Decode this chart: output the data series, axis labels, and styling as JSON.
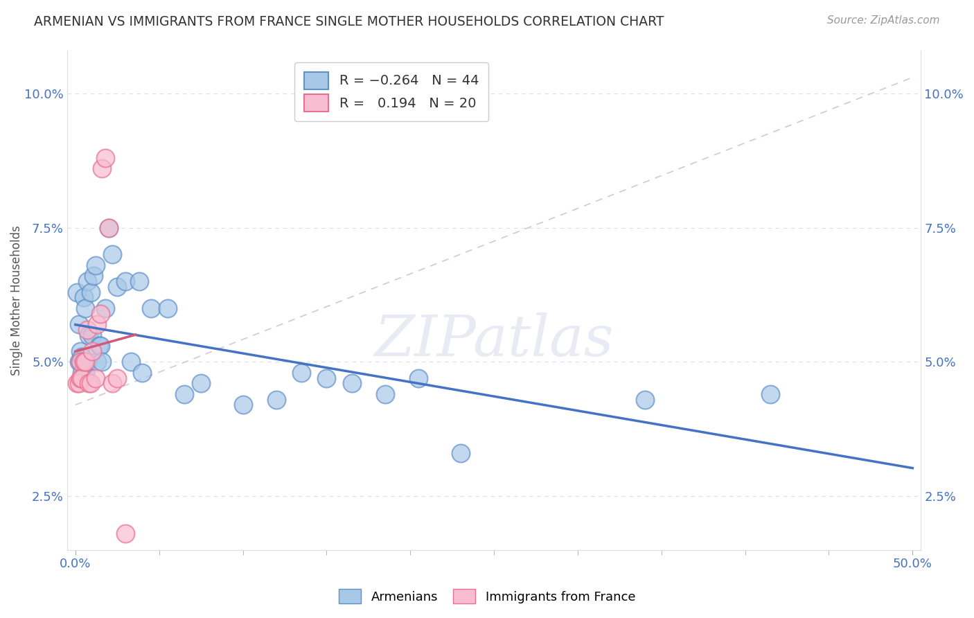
{
  "title": "ARMENIAN VS IMMIGRANTS FROM FRANCE SINGLE MOTHER HOUSEHOLDS CORRELATION CHART",
  "source": "Source: ZipAtlas.com",
  "ylabel": "Single Mother Households",
  "xlim": [
    -0.005,
    0.505
  ],
  "ylim": [
    0.015,
    0.108
  ],
  "xticks": [
    0.0,
    0.5
  ],
  "xticklabels": [
    "0.0%",
    "50.0%"
  ],
  "yticks": [
    0.025,
    0.05,
    0.075,
    0.1
  ],
  "yticklabels": [
    "2.5%",
    "5.0%",
    "7.5%",
    "10.0%"
  ],
  "blue_color": "#a8c8e8",
  "pink_color": "#f8bdd0",
  "blue_edge_color": "#6090c8",
  "pink_edge_color": "#e87090",
  "blue_line_color": "#4472c4",
  "pink_line_color": "#d45878",
  "diag_color": "#d8bcd8",
  "watermark": "ZIPatlas",
  "armenians_x": [
    0.001,
    0.002,
    0.002,
    0.003,
    0.003,
    0.004,
    0.004,
    0.005,
    0.005,
    0.006,
    0.006,
    0.007,
    0.007,
    0.008,
    0.009,
    0.01,
    0.011,
    0.012,
    0.013,
    0.014,
    0.015,
    0.016,
    0.018,
    0.02,
    0.022,
    0.025,
    0.03,
    0.033,
    0.038,
    0.04,
    0.045,
    0.055,
    0.065,
    0.075,
    0.1,
    0.12,
    0.135,
    0.15,
    0.165,
    0.185,
    0.205,
    0.23,
    0.34,
    0.415
  ],
  "armenians_y": [
    0.063,
    0.057,
    0.05,
    0.052,
    0.05,
    0.048,
    0.051,
    0.05,
    0.062,
    0.048,
    0.06,
    0.05,
    0.065,
    0.055,
    0.063,
    0.055,
    0.066,
    0.068,
    0.05,
    0.053,
    0.053,
    0.05,
    0.06,
    0.075,
    0.07,
    0.064,
    0.065,
    0.05,
    0.065,
    0.048,
    0.06,
    0.06,
    0.044,
    0.046,
    0.042,
    0.043,
    0.048,
    0.047,
    0.046,
    0.044,
    0.047,
    0.033,
    0.043,
    0.044
  ],
  "france_x": [
    0.001,
    0.002,
    0.003,
    0.003,
    0.004,
    0.005,
    0.006,
    0.007,
    0.008,
    0.009,
    0.01,
    0.012,
    0.013,
    0.015,
    0.016,
    0.018,
    0.02,
    0.022,
    0.025,
    0.03
  ],
  "france_y": [
    0.046,
    0.046,
    0.047,
    0.05,
    0.047,
    0.05,
    0.05,
    0.056,
    0.046,
    0.046,
    0.052,
    0.047,
    0.057,
    0.059,
    0.086,
    0.088,
    0.075,
    0.046,
    0.047,
    0.018
  ],
  "bg_color": "#ffffff",
  "title_color": "#333333",
  "tick_color": "#4472c4",
  "grid_color": "#ddddee"
}
